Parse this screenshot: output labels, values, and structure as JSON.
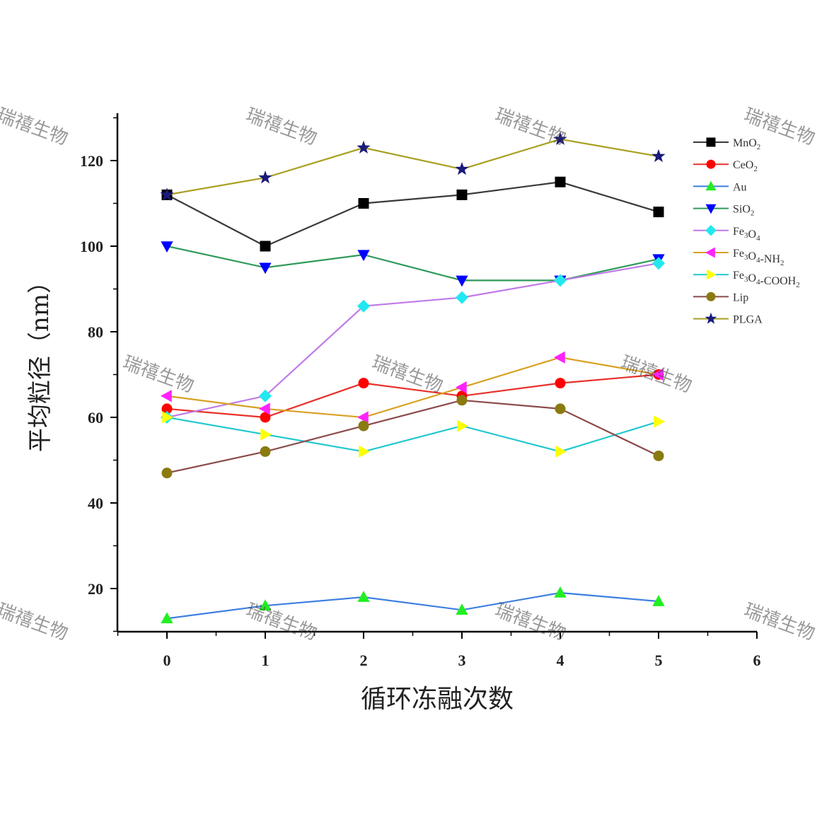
{
  "chart_data": {
    "type": "line",
    "xlabel": "循环冻融次数",
    "ylabel": "平均粒径（nm）",
    "xlim": [
      -0.5,
      6
    ],
    "ylim": [
      10,
      130
    ],
    "x_ticks": [
      0,
      1,
      2,
      3,
      4,
      5,
      6
    ],
    "y_ticks": [
      20,
      40,
      60,
      80,
      100,
      120
    ],
    "x": [
      0,
      1,
      2,
      3,
      4,
      5
    ],
    "legend_position": "top-right",
    "grid": false,
    "series": [
      {
        "name": "MnO2",
        "label_main": "MnO",
        "label_sub": "2",
        "label_rest": "",
        "color": "#000000",
        "line_color": "#3a3a3a",
        "marker": "square",
        "values": [
          112,
          100,
          110,
          112,
          115,
          108
        ]
      },
      {
        "name": "CeO2",
        "label_main": "CeO",
        "label_sub": "2",
        "label_rest": "",
        "color": "#ff0000",
        "line_color": "#e8302a",
        "marker": "circle",
        "values": [
          62,
          60,
          68,
          65,
          68,
          70
        ]
      },
      {
        "name": "Au",
        "label_main": "Au",
        "label_sub": "",
        "label_rest": "",
        "color": "#22ee22",
        "line_color": "#3e7fe0",
        "marker": "triangle-up",
        "values": [
          13,
          16,
          18,
          15,
          19,
          17
        ]
      },
      {
        "name": "SiO2",
        "label_main": "SiO",
        "label_sub": "2",
        "label_rest": "",
        "color": "#0000ff",
        "line_color": "#2f9a5a",
        "marker": "triangle-down",
        "values": [
          100,
          95,
          98,
          92,
          92,
          97
        ]
      },
      {
        "name": "Fe3O4",
        "label_main": "Fe",
        "label_sub": "3",
        "label_rest": "O",
        "label_sub2": "4",
        "color": "#22e8f0",
        "line_color": "#c07ae8",
        "marker": "diamond",
        "values": [
          60,
          65,
          86,
          88,
          92,
          96
        ]
      },
      {
        "name": "Fe3O4-NH2",
        "label_main": "Fe",
        "label_sub": "3",
        "label_rest": "O",
        "label_sub2": "4",
        "label_tail": "-NH",
        "label_sub3": "2",
        "color": "#ff22ff",
        "line_color": "#d8a020",
        "marker": "triangle-left",
        "values": [
          65,
          62,
          60,
          67,
          74,
          70
        ]
      },
      {
        "name": "Fe3O4-COOH2",
        "label_main": "Fe",
        "label_sub": "3",
        "label_rest": "O",
        "label_sub2": "4",
        "label_tail": "-COOH",
        "label_sub3": "2",
        "color": "#ffff00",
        "line_color": "#22c8d0",
        "marker": "triangle-right",
        "values": [
          60,
          56,
          52,
          58,
          52,
          59
        ]
      },
      {
        "name": "Lip",
        "label_main": "Lip",
        "label_sub": "",
        "label_rest": "",
        "color": "#8a7a10",
        "line_color": "#8b4a4a",
        "marker": "circle",
        "values": [
          47,
          52,
          58,
          64,
          62,
          51
        ]
      },
      {
        "name": "PLGA",
        "label_main": "PLGA",
        "label_sub": "",
        "label_rest": "",
        "color": "#1a1a7a",
        "line_color": "#a8a020",
        "marker": "star",
        "values": [
          112,
          116,
          123,
          118,
          125,
          121
        ]
      }
    ]
  },
  "watermark": {
    "text": "瑞禧生物"
  }
}
